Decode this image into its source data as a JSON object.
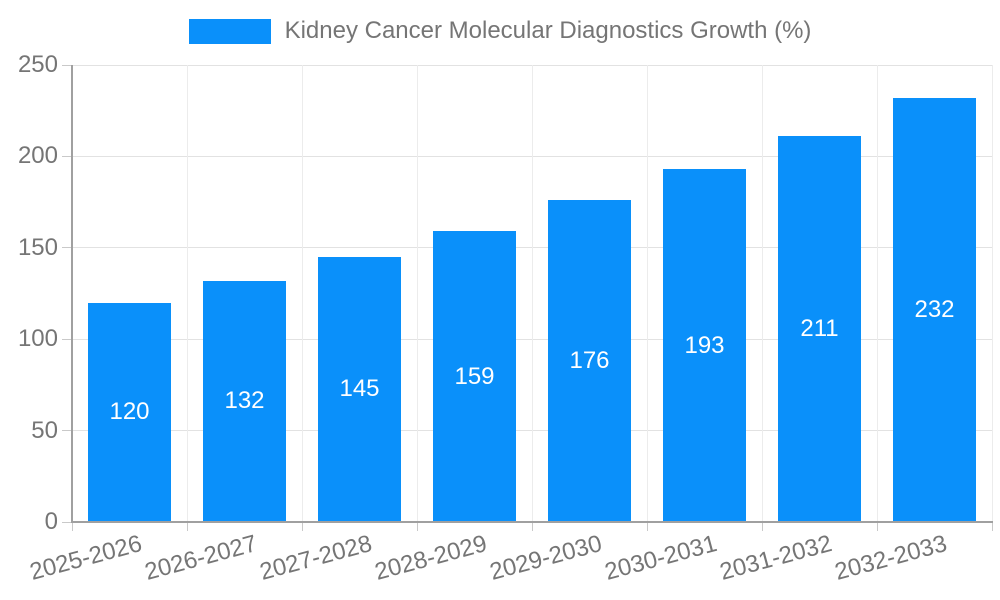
{
  "legend": {
    "label": "Kidney Cancer Molecular Diagnostics Growth (%)"
  },
  "chart_data": {
    "type": "bar",
    "title": "Kidney Cancer Molecular Diagnostics Growth (%)",
    "categories": [
      "2025-2026",
      "2026-2027",
      "2027-2028",
      "2028-2029",
      "2029-2030",
      "2030-2031",
      "2031-2032",
      "2032-2033"
    ],
    "values": [
      120,
      132,
      145,
      159,
      176,
      193,
      211,
      232
    ],
    "xlabel": "",
    "ylabel": "",
    "ylim": [
      0,
      250
    ],
    "yticks": [
      0,
      50,
      100,
      150,
      200,
      250
    ],
    "grid": true,
    "legend_position": "top-center",
    "value_label_position": "inside-middle",
    "x_label_rotation_deg": -15,
    "colors": {
      "bar": "#0a90fa",
      "legend_text": "#757575",
      "tick_text": "#757575",
      "axis_line": "#a0a0a0",
      "tick_mark": "#c9c9c9",
      "gridline_h": "#e2e2e2",
      "gridline_v": "#ececec",
      "value_label": "#ffffff",
      "background": "#ffffff"
    }
  }
}
